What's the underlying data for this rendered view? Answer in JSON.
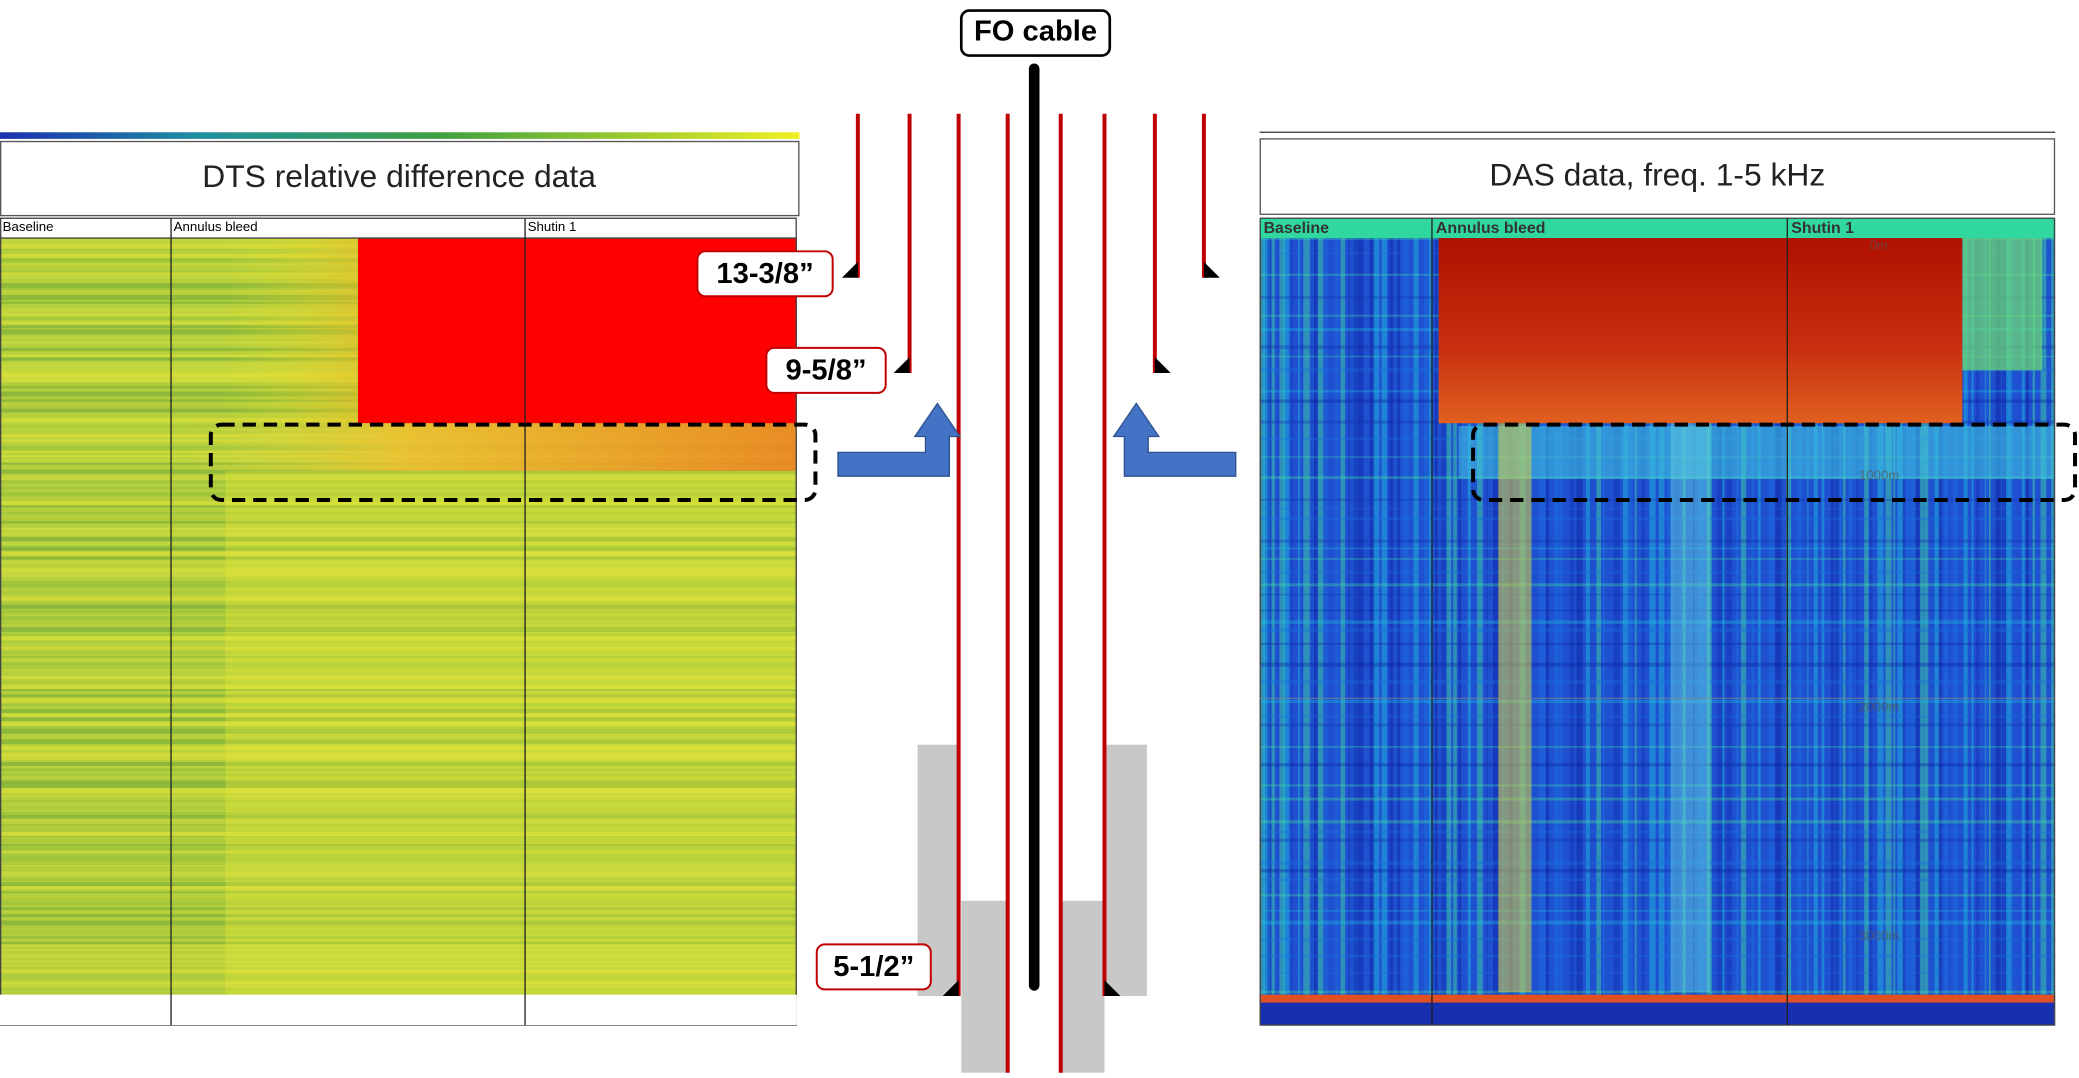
{
  "fo_cable": "FO cable",
  "dts": {
    "title": "DTS relative difference data",
    "phases": [
      "Baseline",
      "Annulus bleed",
      "Shutin 1"
    ]
  },
  "das": {
    "title": "DAS data, freq. 1-5 kHz",
    "phases": [
      "Baseline",
      "Annulus bleed",
      "Shutin 1"
    ],
    "depths": [
      "0m",
      "1000m",
      "2000m",
      "3000m"
    ]
  },
  "casings": [
    "13-3/8”",
    "9-5/8”",
    "5-1/2”"
  ]
}
